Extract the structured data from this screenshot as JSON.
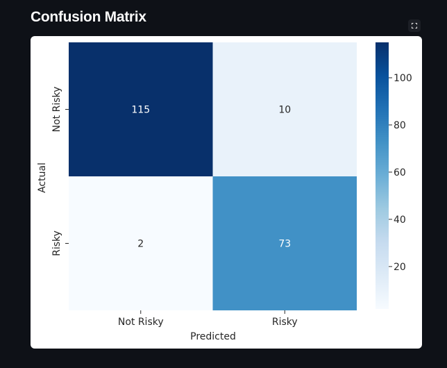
{
  "page": {
    "title": "Confusion Matrix",
    "fullscreen_icon": "expand-icon"
  },
  "chart_data": {
    "type": "heatmap",
    "title": "",
    "xlabel": "Predicted",
    "ylabel": "Actual",
    "x_categories": [
      "Not Risky",
      "Risky"
    ],
    "y_categories": [
      "Not Risky",
      "Risky"
    ],
    "values": [
      [
        115,
        10
      ],
      [
        2,
        73
      ]
    ],
    "colormap": "Blues",
    "colorbar": {
      "range": [
        2,
        115
      ],
      "ticks": [
        20,
        40,
        60,
        80,
        100
      ]
    },
    "annotations": true
  }
}
